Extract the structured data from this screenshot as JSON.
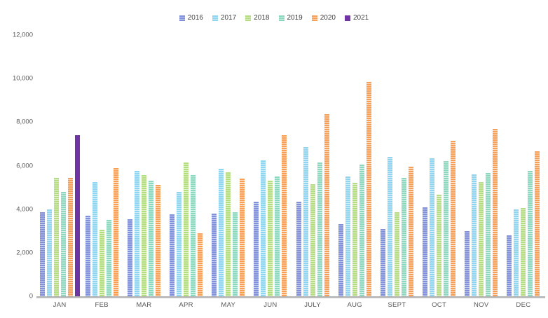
{
  "chart_data": {
    "type": "bar",
    "title": "",
    "categories": [
      "JAN",
      "FEB",
      "MAR",
      "APR",
      "MAY",
      "JUN",
      "JULY",
      "AUG",
      "SEPT",
      "OCT",
      "NOV",
      "DEC"
    ],
    "series": [
      {
        "name": "2016",
        "color": "#8091d9",
        "color_light": "#c3cbef",
        "pattern": "striped",
        "values": [
          3850,
          3700,
          3550,
          3750,
          3800,
          4350,
          4350,
          3300,
          3100,
          4100,
          3000,
          2800
        ]
      },
      {
        "name": "2017",
        "color": "#8fd5ef",
        "color_light": "#d1edf9",
        "pattern": "striped",
        "values": [
          4000,
          5250,
          5750,
          4800,
          5850,
          6250,
          6850,
          5500,
          6400,
          6350,
          5600,
          4000
        ]
      },
      {
        "name": "2018",
        "color": "#b4dd82",
        "color_light": "#e1f1c9",
        "pattern": "striped",
        "values": [
          5450,
          3050,
          5550,
          6150,
          5700,
          5300,
          5150,
          5200,
          3850,
          4650,
          5250,
          4050
        ]
      },
      {
        "name": "2019",
        "color": "#8bd8bf",
        "color_light": "#d3f0e6",
        "pattern": "striped",
        "values": [
          4800,
          3500,
          5300,
          5550,
          3850,
          5500,
          6150,
          6050,
          5450,
          6200,
          5650,
          5750
        ]
      },
      {
        "name": "2020",
        "color": "#f89f57",
        "color_light": "#fcdfc5",
        "pattern": "striped",
        "values": [
          5450,
          5900,
          5100,
          2900,
          5400,
          7400,
          8350,
          9850,
          5950,
          7150,
          7700,
          6650
        ]
      },
      {
        "name": "2021",
        "color": "#6f35a5",
        "color_light": "#6f35a5",
        "pattern": "solid",
        "values": [
          7400,
          null,
          null,
          null,
          null,
          null,
          null,
          null,
          null,
          null,
          null,
          null
        ]
      }
    ],
    "y_axis": {
      "min": 0,
      "max": 12000,
      "tick_interval": 2000,
      "tick_labels": [
        "0",
        "2,000",
        "4,000",
        "6,000",
        "8,000",
        "10,000",
        "12,000"
      ]
    },
    "x_axis_label": "",
    "y_axis_label": "",
    "legend_position": "top",
    "gridlines": false,
    "axis_text_color": "#595959",
    "baseline_color": "#b3b3b3"
  }
}
